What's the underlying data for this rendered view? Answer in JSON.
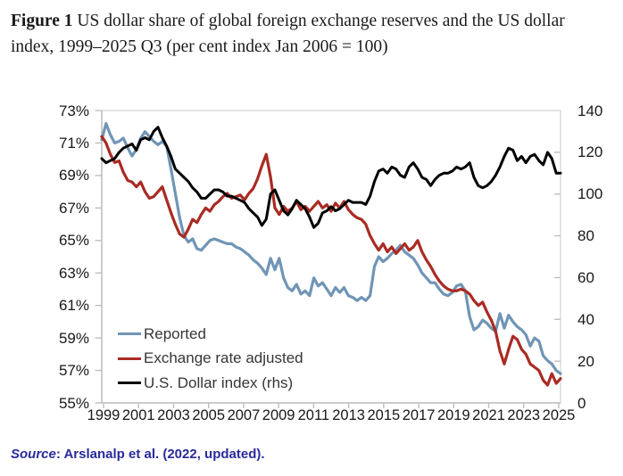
{
  "title": {
    "figure_label": "Figure 1",
    "line1": " US dollar share of global foreign exchange reserves and the US dollar",
    "line2": "index, 1999–2025 Q3 (per cent index Jan 2006 = 100)"
  },
  "source": {
    "label": "Source",
    "rest": ": Arslanalp et al. (2022, updated)."
  },
  "chart_data": {
    "type": "line",
    "frequency": "quarterly",
    "x_start": "1999Q1",
    "x_end": "2025Q3",
    "grid": false,
    "legend_position": "inside lower-left",
    "x_axis": {
      "labels": [
        "1999",
        "2001",
        "2003",
        "2005",
        "2007",
        "2009",
        "2011",
        "2013",
        "2015",
        "2017",
        "2019",
        "2021",
        "2023",
        "2025"
      ]
    },
    "left_axis": {
      "min": 55,
      "max": 73,
      "unit": "%",
      "labels": [
        "73%",
        "71%",
        "69%",
        "67%",
        "65%",
        "63%",
        "61%",
        "59%",
        "57%",
        "55%"
      ]
    },
    "right_axis": {
      "min": 0,
      "max": 140,
      "labels": [
        "140",
        "120",
        "100",
        "80",
        "60",
        "40",
        "20",
        "0"
      ]
    },
    "axis_colors": {
      "border": "#D9D9D9",
      "axis_line": "#BFBFBF"
    },
    "series": [
      {
        "id": "reported",
        "name": "Reported",
        "axis": "left",
        "color": "#7095B6",
        "values": [
          71.2,
          72.2,
          71.5,
          71.0,
          71.1,
          71.3,
          70.7,
          70.2,
          70.6,
          71.3,
          71.7,
          71.4,
          71.1,
          70.9,
          71.1,
          70.8,
          69.4,
          67.9,
          66.4,
          65.3,
          64.9,
          65.1,
          64.5,
          64.4,
          64.7,
          65.0,
          65.1,
          65.0,
          64.9,
          64.8,
          64.8,
          64.6,
          64.5,
          64.3,
          64.1,
          63.8,
          63.6,
          63.3,
          62.9,
          63.9,
          63.2,
          63.9,
          62.7,
          62.1,
          61.9,
          62.3,
          61.7,
          61.9,
          61.6,
          62.7,
          62.2,
          62.4,
          62.0,
          61.6,
          62.1,
          61.8,
          62.1,
          61.6,
          61.5,
          61.3,
          61.5,
          61.3,
          61.6,
          63.4,
          64.0,
          63.7,
          63.9,
          64.2,
          64.4,
          64.7,
          64.3,
          64.1,
          63.9,
          63.5,
          63.0,
          62.7,
          62.4,
          62.4,
          62.0,
          61.7,
          61.6,
          61.8,
          62.2,
          62.3,
          61.9,
          60.3,
          59.5,
          59.7,
          60.1,
          59.9,
          59.6,
          59.4,
          60.5,
          59.6,
          60.4,
          60.0,
          59.7,
          59.5,
          59.2,
          58.5,
          59.0,
          58.8,
          57.9,
          57.6,
          57.4,
          57.0,
          56.8
        ]
      },
      {
        "id": "exchange-rate-adjusted",
        "name": "Exchange rate adjusted",
        "axis": "left",
        "color": "#A92B23",
        "values": [
          71.4,
          71.0,
          70.3,
          69.8,
          69.9,
          69.2,
          68.7,
          68.6,
          68.3,
          68.6,
          68.0,
          67.6,
          67.7,
          68.0,
          68.3,
          67.5,
          66.7,
          66.0,
          65.4,
          65.2,
          65.7,
          66.3,
          66.1,
          66.6,
          67.0,
          66.8,
          67.2,
          67.4,
          67.7,
          67.9,
          67.6,
          67.7,
          67.8,
          67.5,
          67.9,
          68.2,
          68.8,
          69.6,
          70.3,
          68.9,
          67.0,
          66.6,
          67.1,
          66.8,
          67.0,
          67.4,
          66.9,
          67.1,
          66.8,
          67.1,
          67.4,
          67.0,
          67.2,
          66.8,
          67.3,
          67.0,
          67.4,
          66.9,
          66.6,
          66.4,
          66.3,
          66.0,
          65.3,
          64.8,
          64.4,
          64.8,
          64.3,
          64.6,
          64.2,
          64.5,
          64.8,
          64.4,
          64.6,
          65.0,
          64.3,
          63.8,
          63.4,
          62.9,
          62.5,
          62.2,
          62.0,
          61.9,
          61.9,
          62.0,
          61.9,
          61.7,
          61.3,
          61.0,
          61.2,
          60.6,
          60.1,
          59.4,
          58.2,
          57.4,
          58.3,
          59.1,
          58.9,
          58.3,
          58.0,
          57.4,
          57.2,
          57.0,
          56.4,
          56.1,
          56.8,
          56.2,
          56.5
        ]
      },
      {
        "id": "usd-index",
        "name": "U.S. Dollar index (rhs)",
        "axis": "right",
        "color": "#000000",
        "values": [
          117,
          115,
          116,
          117,
          120,
          122,
          123,
          124,
          121,
          126,
          127,
          126,
          130,
          132,
          127,
          123,
          118,
          112,
          110,
          108,
          106,
          103,
          101,
          98,
          98,
          100,
          102,
          102,
          101,
          99,
          99,
          98,
          97,
          96,
          93,
          91,
          89,
          85,
          88,
          100,
          102,
          97,
          92,
          90,
          93,
          97,
          95,
          93,
          89,
          84,
          86,
          91,
          92,
          94,
          92,
          93,
          95,
          97,
          96,
          96,
          96,
          95,
          99,
          106,
          111,
          112,
          110,
          113,
          112,
          109,
          108,
          113,
          115,
          112,
          108,
          107,
          104,
          107,
          109,
          110,
          110,
          111,
          113,
          112,
          113,
          115,
          108,
          104,
          103,
          104,
          106,
          109,
          113,
          118,
          122,
          121,
          116,
          118,
          115,
          118,
          119,
          116,
          114,
          120,
          117,
          110,
          110
        ]
      }
    ]
  }
}
